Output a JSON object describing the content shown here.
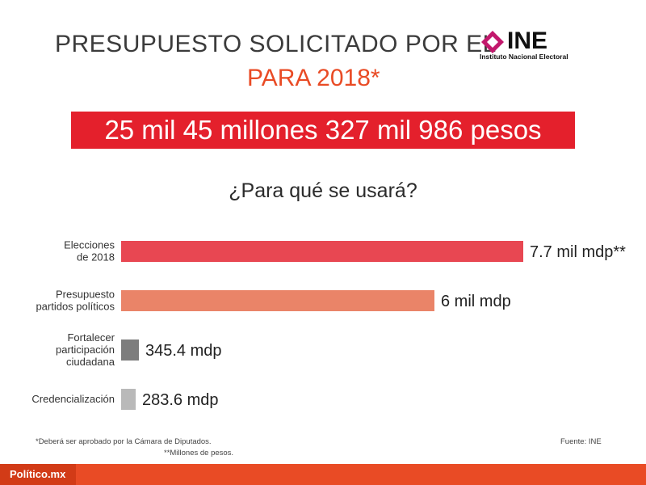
{
  "header": {
    "title_line1": "PRESUPUESTO SOLICITADO POR EL",
    "title_line2": "PARA 2018*",
    "logo_text": "INE",
    "logo_subtitle": "Instituto Nacional Electoral"
  },
  "banner": {
    "text": "25 mil 45 millones 327 mil 986 pesos"
  },
  "colors": {
    "title_gray": "#3b3b3b",
    "accent_orange": "#e94b25",
    "banner_red": "#e4202c",
    "logo_magenta": "#c2186c"
  },
  "chart_data": {
    "type": "bar",
    "orientation": "horizontal",
    "title": "¿Para qué se usará?",
    "unit": "millones de pesos",
    "categories": [
      [
        "Elecciones",
        "de 2018"
      ],
      [
        "Presupuesto",
        "partidos políticos"
      ],
      [
        "Fortalecer",
        "participación",
        "ciudadana"
      ],
      [
        "Credencialización"
      ]
    ],
    "values": [
      7700,
      6000,
      345.4,
      283.6
    ],
    "value_labels": [
      "7.7 mil mdp**",
      "6 mil mdp",
      "345.4 mdp",
      "283.6 mdp"
    ],
    "bar_colors": [
      "#e84752",
      "#ea8468",
      "#7d7d7d",
      "#b9b9b9"
    ],
    "xlim": [
      0,
      7700
    ]
  },
  "footnotes": {
    "note1": "*Deberá ser aprobado por la Cámara de Diputados.",
    "note2": "**Millones de pesos.",
    "source": "Fuente: INE"
  },
  "footer": {
    "brand": "Político.mx"
  }
}
